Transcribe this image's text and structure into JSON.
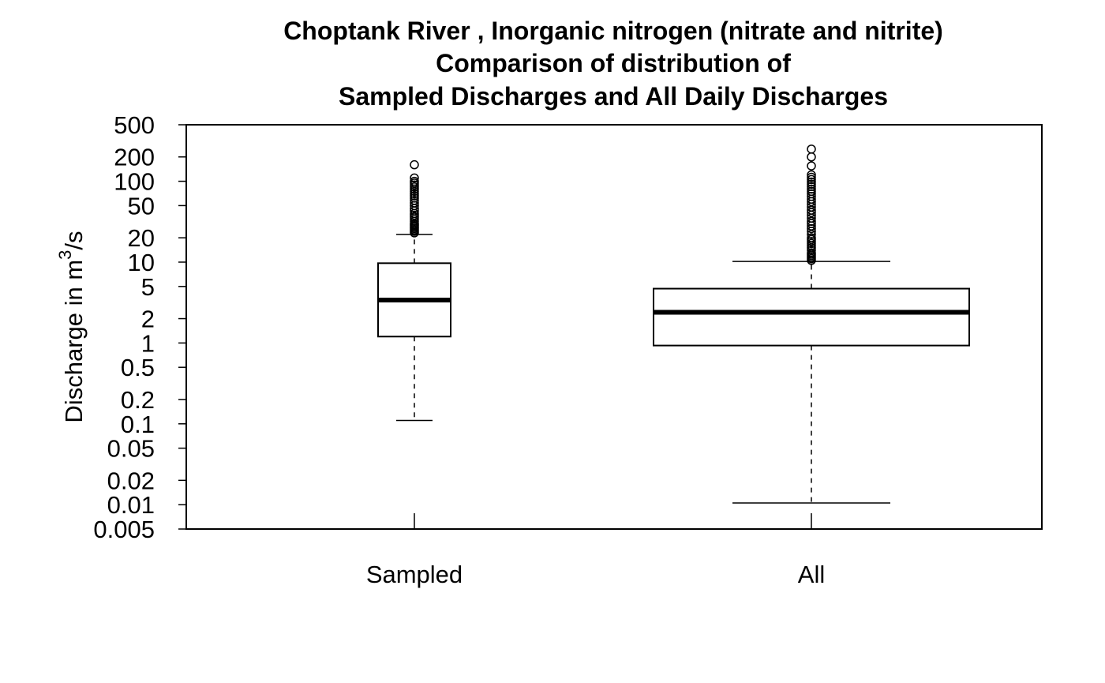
{
  "chart_data": {
    "type": "boxplot",
    "title_lines": [
      "Choptank River , Inorganic nitrogen (nitrate and nitrite)",
      "Comparison of distribution of",
      "Sampled Discharges and All Daily Discharges"
    ],
    "ylabel": {
      "prefix": "Discharge in m",
      "superscript": "3",
      "suffix": "/s"
    },
    "y_scale": "log",
    "ylim": [
      0.005,
      500
    ],
    "y_ticks": [
      {
        "value": 500,
        "label": "500"
      },
      {
        "value": 200,
        "label": "200"
      },
      {
        "value": 100,
        "label": "100"
      },
      {
        "value": 50,
        "label": "50"
      },
      {
        "value": 20,
        "label": "20"
      },
      {
        "value": 10,
        "label": "10"
      },
      {
        "value": 5,
        "label": "5"
      },
      {
        "value": 2,
        "label": "2"
      },
      {
        "value": 1,
        "label": "1"
      },
      {
        "value": 0.5,
        "label": "0.5"
      },
      {
        "value": 0.2,
        "label": "0.2"
      },
      {
        "value": 0.1,
        "label": "0.1"
      },
      {
        "value": 0.05,
        "label": "0.05"
      },
      {
        "value": 0.02,
        "label": "0.02"
      },
      {
        "value": 0.01,
        "label": "0.01"
      },
      {
        "value": 0.005,
        "label": "0.005"
      }
    ],
    "categories": [
      "Sampled",
      "All"
    ],
    "boxes": [
      {
        "name": "Sampled",
        "whisker_low": 0.11,
        "q1": 1.2,
        "median": 3.4,
        "q3": 9.7,
        "whisker_high": 22,
        "outliers": [
          23,
          24,
          25,
          26,
          27,
          28,
          29,
          30,
          32,
          34,
          36,
          38,
          40,
          43,
          46,
          50,
          54,
          58,
          62,
          66,
          70,
          75,
          80,
          85,
          90,
          95,
          100,
          110,
          160
        ]
      },
      {
        "name": "All",
        "whisker_low": 0.0105,
        "q1": 0.93,
        "median": 2.4,
        "q3": 4.7,
        "whisker_high": 10.2,
        "outliers": [
          10.5,
          11,
          11.5,
          12,
          12.5,
          13,
          14,
          15,
          16,
          17,
          18,
          19,
          20,
          22,
          24,
          26,
          28,
          30,
          32,
          35,
          38,
          41,
          44,
          48,
          52,
          56,
          60,
          65,
          70,
          75,
          80,
          86,
          92,
          98,
          105,
          112,
          120,
          155,
          200,
          250
        ]
      }
    ],
    "grid": false,
    "legend": "none"
  }
}
